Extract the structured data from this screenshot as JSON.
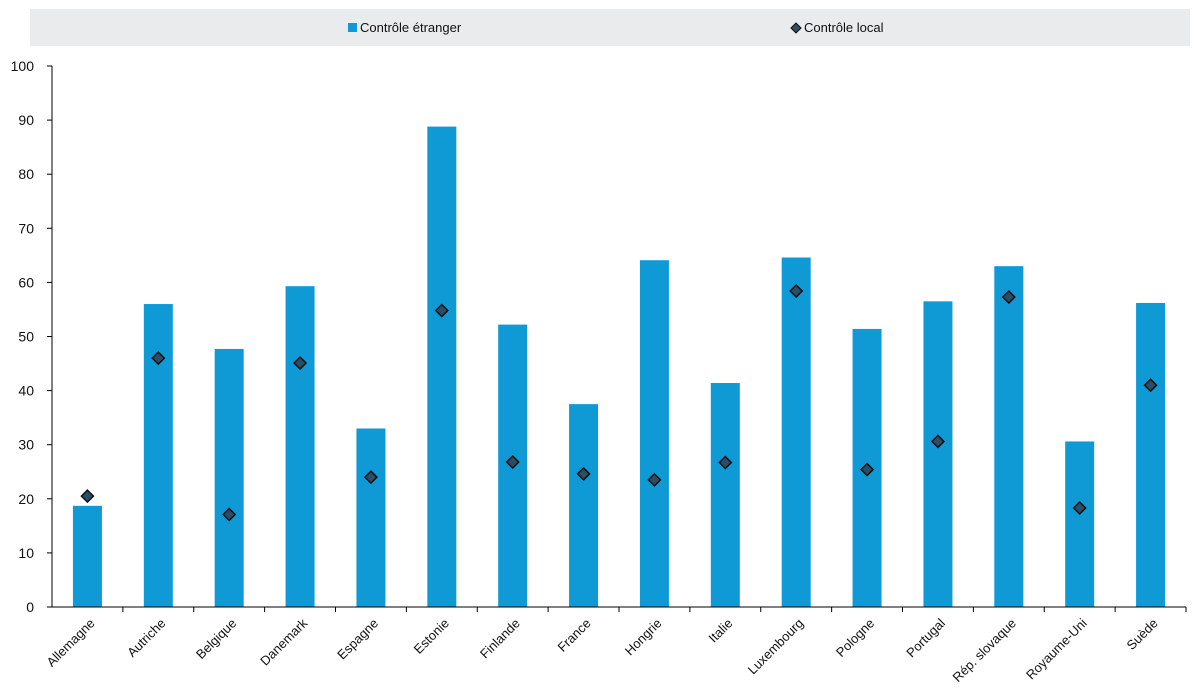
{
  "chart_data": {
    "type": "bar",
    "title": "",
    "xlabel": "",
    "ylabel": "",
    "ylim": [
      0,
      100
    ],
    "yticks": [
      0,
      10,
      20,
      30,
      40,
      50,
      60,
      70,
      80,
      90,
      100
    ],
    "grid": false,
    "legend_position": "top",
    "categories": [
      "Allemagne",
      "Autriche",
      "Belgique",
      "Danemark",
      "Espagne",
      "Estonie",
      "Finlande",
      "France",
      "Hongrie",
      "Italie",
      "Luxembourg",
      "Pologne",
      "Portugal",
      "Rép. slovaque",
      "Royaume-Uni",
      "Suède"
    ],
    "series": [
      {
        "name": "Contrôle étranger",
        "kind": "bar",
        "color": "#0f9ad6",
        "values": [
          18.7,
          56.0,
          47.7,
          59.3,
          33.0,
          88.8,
          52.2,
          37.5,
          64.1,
          41.4,
          64.6,
          51.4,
          56.5,
          63.0,
          30.6,
          56.2
        ]
      },
      {
        "name": "Contrôle local",
        "kind": "marker",
        "color": "#2b4e66",
        "values": [
          20.5,
          46.0,
          17.1,
          45.1,
          24.0,
          54.8,
          26.8,
          24.6,
          23.5,
          26.7,
          58.4,
          25.4,
          30.6,
          57.3,
          18.3,
          41.0
        ]
      }
    ]
  }
}
